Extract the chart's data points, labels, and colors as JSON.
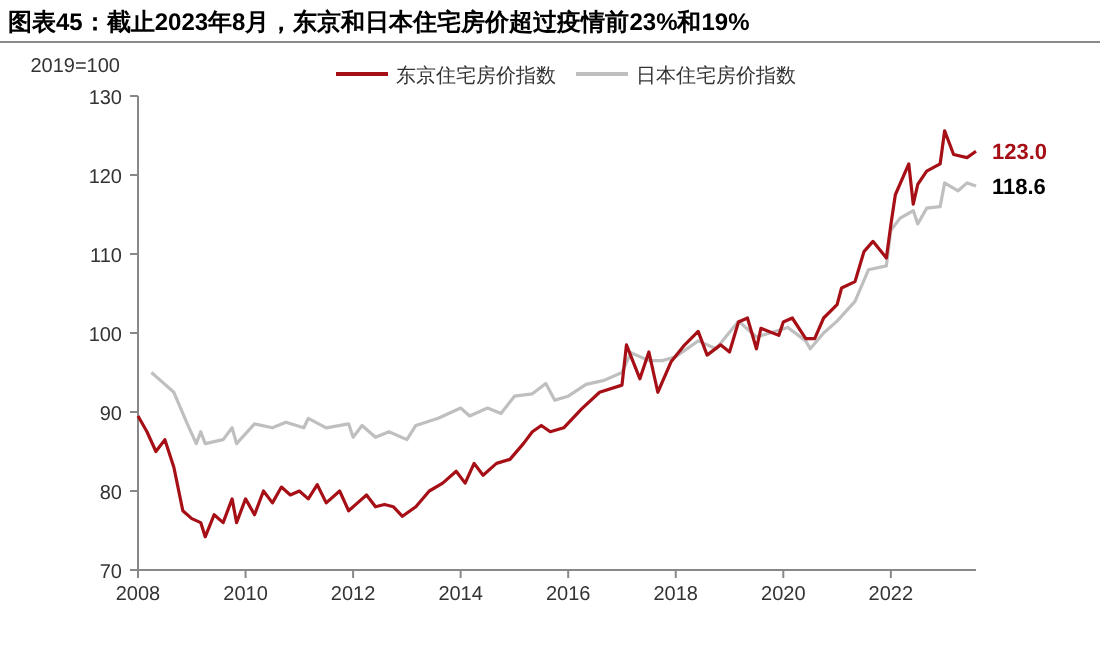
{
  "chart_data": {
    "type": "line",
    "title": "图表45：截止2023年8月，东京和日本住宅房价超过疫情前23%和19%",
    "ylabel": "2019=100",
    "legend": "top",
    "grid": false,
    "marker": "none",
    "line_style": "solid",
    "xlim": [
      "2008-01",
      "2023-08"
    ],
    "xticks": [
      "2008",
      "2010",
      "2012",
      "2014",
      "2016",
      "2018",
      "2020",
      "2022"
    ],
    "ylim": [
      70,
      130
    ],
    "yticks": [
      70,
      80,
      90,
      100,
      110,
      120,
      130
    ],
    "annotations": [
      {
        "text": "123.0",
        "x": "2023-08",
        "y": 123.0
      },
      {
        "text": "118.6",
        "x": "2023-08",
        "y": 118.6
      }
    ],
    "series": [
      {
        "name": "东京住宅房价指数",
        "color": "#a50f15",
        "x": [
          "2008-01",
          "2008-03",
          "2008-05",
          "2008-07",
          "2008-09",
          "2008-11",
          "2009-01",
          "2009-03",
          "2009-04",
          "2009-06",
          "2009-08",
          "2009-10",
          "2009-11",
          "2010-01",
          "2010-03",
          "2010-05",
          "2010-07",
          "2010-09",
          "2010-11",
          "2011-01",
          "2011-03",
          "2011-05",
          "2011-07",
          "2011-10",
          "2011-12",
          "2012-02",
          "2012-04",
          "2012-06",
          "2012-08",
          "2012-10",
          "2012-12",
          "2013-03",
          "2013-06",
          "2013-09",
          "2013-12",
          "2014-02",
          "2014-04",
          "2014-06",
          "2014-09",
          "2014-12",
          "2015-03",
          "2015-05",
          "2015-07",
          "2015-09",
          "2015-12",
          "2016-04",
          "2016-08",
          "2017-01",
          "2017-02",
          "2017-05",
          "2017-07",
          "2017-09",
          "2017-12",
          "2018-03",
          "2018-06",
          "2018-08",
          "2018-11",
          "2019-01",
          "2019-03",
          "2019-05",
          "2019-07",
          "2019-08",
          "2019-12",
          "2020-01",
          "2020-03",
          "2020-06",
          "2020-08",
          "2020-10",
          "2021-01",
          "2021-02",
          "2021-05",
          "2021-07",
          "2021-09",
          "2021-12",
          "2022-01",
          "2022-02",
          "2022-05",
          "2022-06",
          "2022-07",
          "2022-09",
          "2022-12",
          "2023-01",
          "2023-03",
          "2023-06",
          "2023-08"
        ],
        "values": [
          89.5,
          87.5,
          85,
          86.5,
          83,
          77.5,
          76.5,
          76,
          74.2,
          77,
          76,
          79,
          76,
          79,
          77,
          80,
          78.5,
          80.5,
          79.5,
          80,
          79,
          80.8,
          78.5,
          80,
          77.5,
          78.5,
          79.5,
          78,
          78.3,
          78,
          76.8,
          78,
          80,
          81,
          82.5,
          81,
          83.5,
          82,
          83.5,
          84,
          86,
          87.5,
          88.3,
          87.5,
          88,
          90.4,
          92.5,
          93.4,
          98.5,
          94.2,
          97.6,
          92.5,
          96.4,
          98.5,
          100.2,
          97.2,
          98.5,
          97.6,
          101.4,
          101.9,
          98,
          100.6,
          99.7,
          101.4,
          101.9,
          99.3,
          99.3,
          101.9,
          103.6,
          105.7,
          106.5,
          110.3,
          111.6,
          109.5,
          113.7,
          117.5,
          121.4,
          116.3,
          118.8,
          120.5,
          121.4,
          125.6,
          122.6,
          122.2,
          123.0
        ]
      },
      {
        "name": "日本住宅房价指数",
        "color": "#bfbfbf",
        "x": [
          "2008-04",
          "2008-06",
          "2008-09",
          "2008-12",
          "2009-02",
          "2009-03",
          "2009-04",
          "2009-08",
          "2009-10",
          "2009-11",
          "2010-03",
          "2010-07",
          "2010-10",
          "2011-02",
          "2011-03",
          "2011-07",
          "2011-12",
          "2012-01",
          "2012-03",
          "2012-06",
          "2012-09",
          "2013-01",
          "2013-03",
          "2013-08",
          "2014-01",
          "2014-03",
          "2014-07",
          "2014-10",
          "2015-01",
          "2015-05",
          "2015-08",
          "2015-10",
          "2016-01",
          "2016-05",
          "2016-09",
          "2017-01",
          "2017-03",
          "2017-07",
          "2017-10",
          "2018-01",
          "2018-06",
          "2018-10",
          "2019-03",
          "2019-07",
          "2019-10",
          "2020-02",
          "2020-06",
          "2020-07",
          "2020-10",
          "2021-01",
          "2021-05",
          "2021-08",
          "2021-12",
          "2022-01",
          "2022-03",
          "2022-06",
          "2022-07",
          "2022-09",
          "2022-12",
          "2023-01",
          "2023-04",
          "2023-06",
          "2023-08"
        ],
        "values": [
          95,
          94,
          92.5,
          88.5,
          86,
          87.5,
          86,
          86.5,
          88,
          86,
          88.5,
          88,
          88.7,
          88,
          89.2,
          88,
          88.5,
          86.8,
          88.3,
          86.8,
          87.5,
          86.5,
          88.3,
          89.2,
          90.5,
          89.5,
          90.5,
          89.8,
          92,
          92.3,
          93.6,
          91.5,
          92,
          93.5,
          94,
          95,
          97.5,
          96.5,
          96.5,
          97,
          99,
          98,
          101.5,
          99.5,
          100,
          100.7,
          99,
          98,
          100,
          101.5,
          104,
          108,
          108.5,
          113,
          114.5,
          115.5,
          113.8,
          115.8,
          116,
          119,
          118,
          119,
          118.6
        ]
      }
    ]
  }
}
